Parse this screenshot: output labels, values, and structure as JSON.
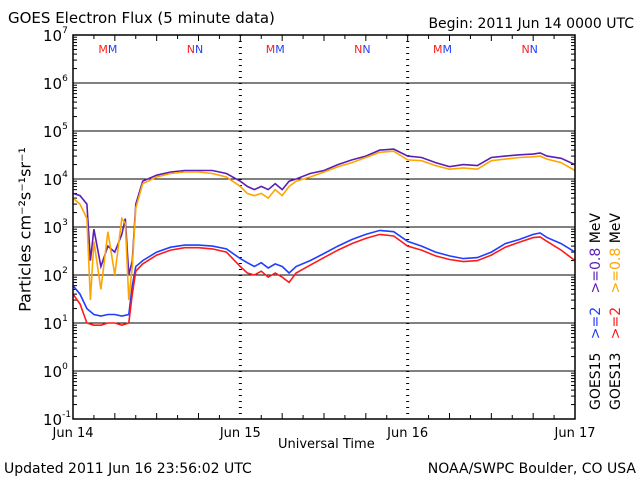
{
  "chart_data": {
    "type": "line",
    "title": "GOES Electron Flux (5 minute data)",
    "begin": "Begin: 2011 Jun 14 0000 UTC",
    "xlabel": "Universal Time",
    "ylabel": "Particles cm⁻²s⁻¹sr⁻¹",
    "x_unit": "hours since 2011 Jun 14 0000 UTC",
    "xlim": [
      0,
      72
    ],
    "ylim_log10": [
      -1,
      7
    ],
    "y_scale": "log",
    "xticks": [
      {
        "t": 0,
        "label": "Jun 14"
      },
      {
        "t": 24,
        "label": "Jun 15"
      },
      {
        "t": 48,
        "label": "Jun 16"
      },
      {
        "t": 72,
        "label": "Jun 17"
      }
    ],
    "yticks": [
      {
        "e": 7,
        "label": "10",
        "exp": "7"
      },
      {
        "e": 6,
        "label": "10",
        "exp": "6"
      },
      {
        "e": 5,
        "label": "10",
        "exp": "5"
      },
      {
        "e": 4,
        "label": "10",
        "exp": "4"
      },
      {
        "e": 3,
        "label": "10",
        "exp": "3"
      },
      {
        "e": 2,
        "label": "10",
        "exp": "2"
      },
      {
        "e": 1,
        "label": "10",
        "exp": "1"
      },
      {
        "e": 0,
        "label": "10",
        "exp": "0"
      },
      {
        "e": -1,
        "label": "10",
        "exp": "-1"
      }
    ],
    "threshold_line": 1000,
    "markers": [
      {
        "t": 5,
        "label": "MM"
      },
      {
        "t": 17.5,
        "label": "NN"
      },
      {
        "t": 29,
        "label": "MM"
      },
      {
        "t": 41.5,
        "label": "NN"
      },
      {
        "t": 53,
        "label": "MM"
      },
      {
        "t": 65.5,
        "label": "NN"
      }
    ],
    "series": [
      {
        "name": "GOES15 >=0.8 MeV",
        "color": "#5a1fb4",
        "t": [
          0,
          1,
          2,
          2.5,
          3,
          4,
          5,
          6,
          7,
          7.5,
          8,
          8.5,
          9,
          10,
          12,
          14,
          16,
          18,
          20,
          22,
          24,
          25,
          26,
          27,
          28,
          29,
          30,
          31,
          32,
          34,
          36,
          38,
          40,
          42,
          44,
          46,
          48,
          50,
          52,
          54,
          56,
          58,
          60,
          62,
          64,
          66,
          67,
          68,
          70,
          72
        ],
        "v": [
          5000,
          4500,
          3000,
          200,
          900,
          150,
          400,
          300,
          700,
          1500,
          100,
          200,
          3000,
          9000,
          12000,
          14000,
          15000,
          15000,
          15000,
          13000,
          9000,
          7000,
          6000,
          7000,
          6000,
          8000,
          6000,
          9000,
          10000,
          13000,
          15000,
          20000,
          25000,
          30000,
          40000,
          42000,
          30000,
          28000,
          22000,
          18000,
          20000,
          19000,
          28000,
          30000,
          32000,
          33000,
          35000,
          30000,
          27000,
          20000
        ]
      },
      {
        "name": "GOES13 >=0.8 MeV",
        "color": "#ffa500",
        "t": [
          0,
          1,
          2,
          2.5,
          3,
          4,
          5,
          6,
          7,
          7.5,
          8,
          8.5,
          9,
          10,
          12,
          14,
          16,
          18,
          20,
          22,
          24,
          25,
          26,
          27,
          28,
          29,
          30,
          31,
          32,
          34,
          36,
          38,
          40,
          42,
          44,
          46,
          48,
          50,
          52,
          54,
          56,
          58,
          60,
          62,
          64,
          66,
          67,
          68,
          70,
          72
        ],
        "v": [
          4000,
          3000,
          1500,
          30,
          500,
          50,
          800,
          100,
          1500,
          1200,
          30,
          150,
          2500,
          8000,
          11000,
          13000,
          14000,
          14000,
          13000,
          11000,
          7000,
          5000,
          4500,
          5000,
          4000,
          6000,
          4500,
          7000,
          9000,
          11000,
          14000,
          18000,
          22000,
          28000,
          36000,
          38000,
          25000,
          24000,
          19000,
          16000,
          17000,
          16000,
          24000,
          26000,
          28000,
          29000,
          30000,
          26000,
          22000,
          15000
        ]
      },
      {
        "name": "GOES15 >=2 MeV",
        "color": "#1f3fff",
        "t": [
          0,
          1,
          2,
          3,
          4,
          5,
          6,
          7,
          8,
          8.5,
          9,
          10,
          12,
          14,
          16,
          18,
          20,
          22,
          24,
          25,
          26,
          27,
          28,
          29,
          30,
          31,
          32,
          34,
          36,
          38,
          40,
          42,
          44,
          46,
          48,
          50,
          52,
          54,
          56,
          58,
          60,
          62,
          64,
          66,
          67,
          68,
          70,
          72
        ],
        "v": [
          60,
          40,
          20,
          15,
          14,
          15,
          15,
          14,
          15,
          60,
          150,
          200,
          300,
          380,
          420,
          420,
          400,
          350,
          220,
          180,
          150,
          180,
          140,
          170,
          150,
          110,
          150,
          200,
          280,
          400,
          550,
          700,
          850,
          800,
          500,
          400,
          300,
          250,
          220,
          230,
          300,
          450,
          550,
          700,
          750,
          600,
          450,
          300
        ]
      },
      {
        "name": "GOES13 >=2 MeV",
        "color": "#ff1a1a",
        "t": [
          0,
          1,
          2,
          3,
          4,
          5,
          6,
          7,
          8,
          8.5,
          9,
          10,
          12,
          14,
          16,
          18,
          20,
          22,
          24,
          25,
          26,
          27,
          28,
          29,
          30,
          31,
          32,
          34,
          36,
          38,
          40,
          42,
          44,
          46,
          48,
          50,
          52,
          54,
          56,
          58,
          60,
          62,
          64,
          66,
          67,
          68,
          70,
          72
        ],
        "v": [
          40,
          25,
          10,
          9,
          9,
          10,
          10,
          9,
          10,
          40,
          120,
          170,
          260,
          330,
          370,
          370,
          350,
          300,
          150,
          110,
          100,
          120,
          90,
          110,
          90,
          70,
          110,
          160,
          230,
          330,
          450,
          580,
          700,
          650,
          400,
          330,
          250,
          210,
          190,
          200,
          260,
          380,
          480,
          600,
          620,
          500,
          330,
          200
        ]
      }
    ],
    "legend": [
      {
        "sat": "GOES15",
        "lines": [
          {
            "text": ">=2",
            "color": "#1f3fff"
          },
          {
            "text": ">=0.8",
            "color": "#5a1fb4"
          }
        ],
        "unit": "MeV"
      },
      {
        "sat": "GOES13",
        "lines": [
          {
            "text": ">=2",
            "color": "#ff1a1a"
          },
          {
            "text": ">=0.8",
            "color": "#ffa500"
          }
        ],
        "unit": "MeV"
      }
    ]
  },
  "footer": {
    "updated": "Updated 2011 Jun 16 23:56:02 UTC",
    "source": "NOAA/SWPC Boulder, CO USA"
  }
}
